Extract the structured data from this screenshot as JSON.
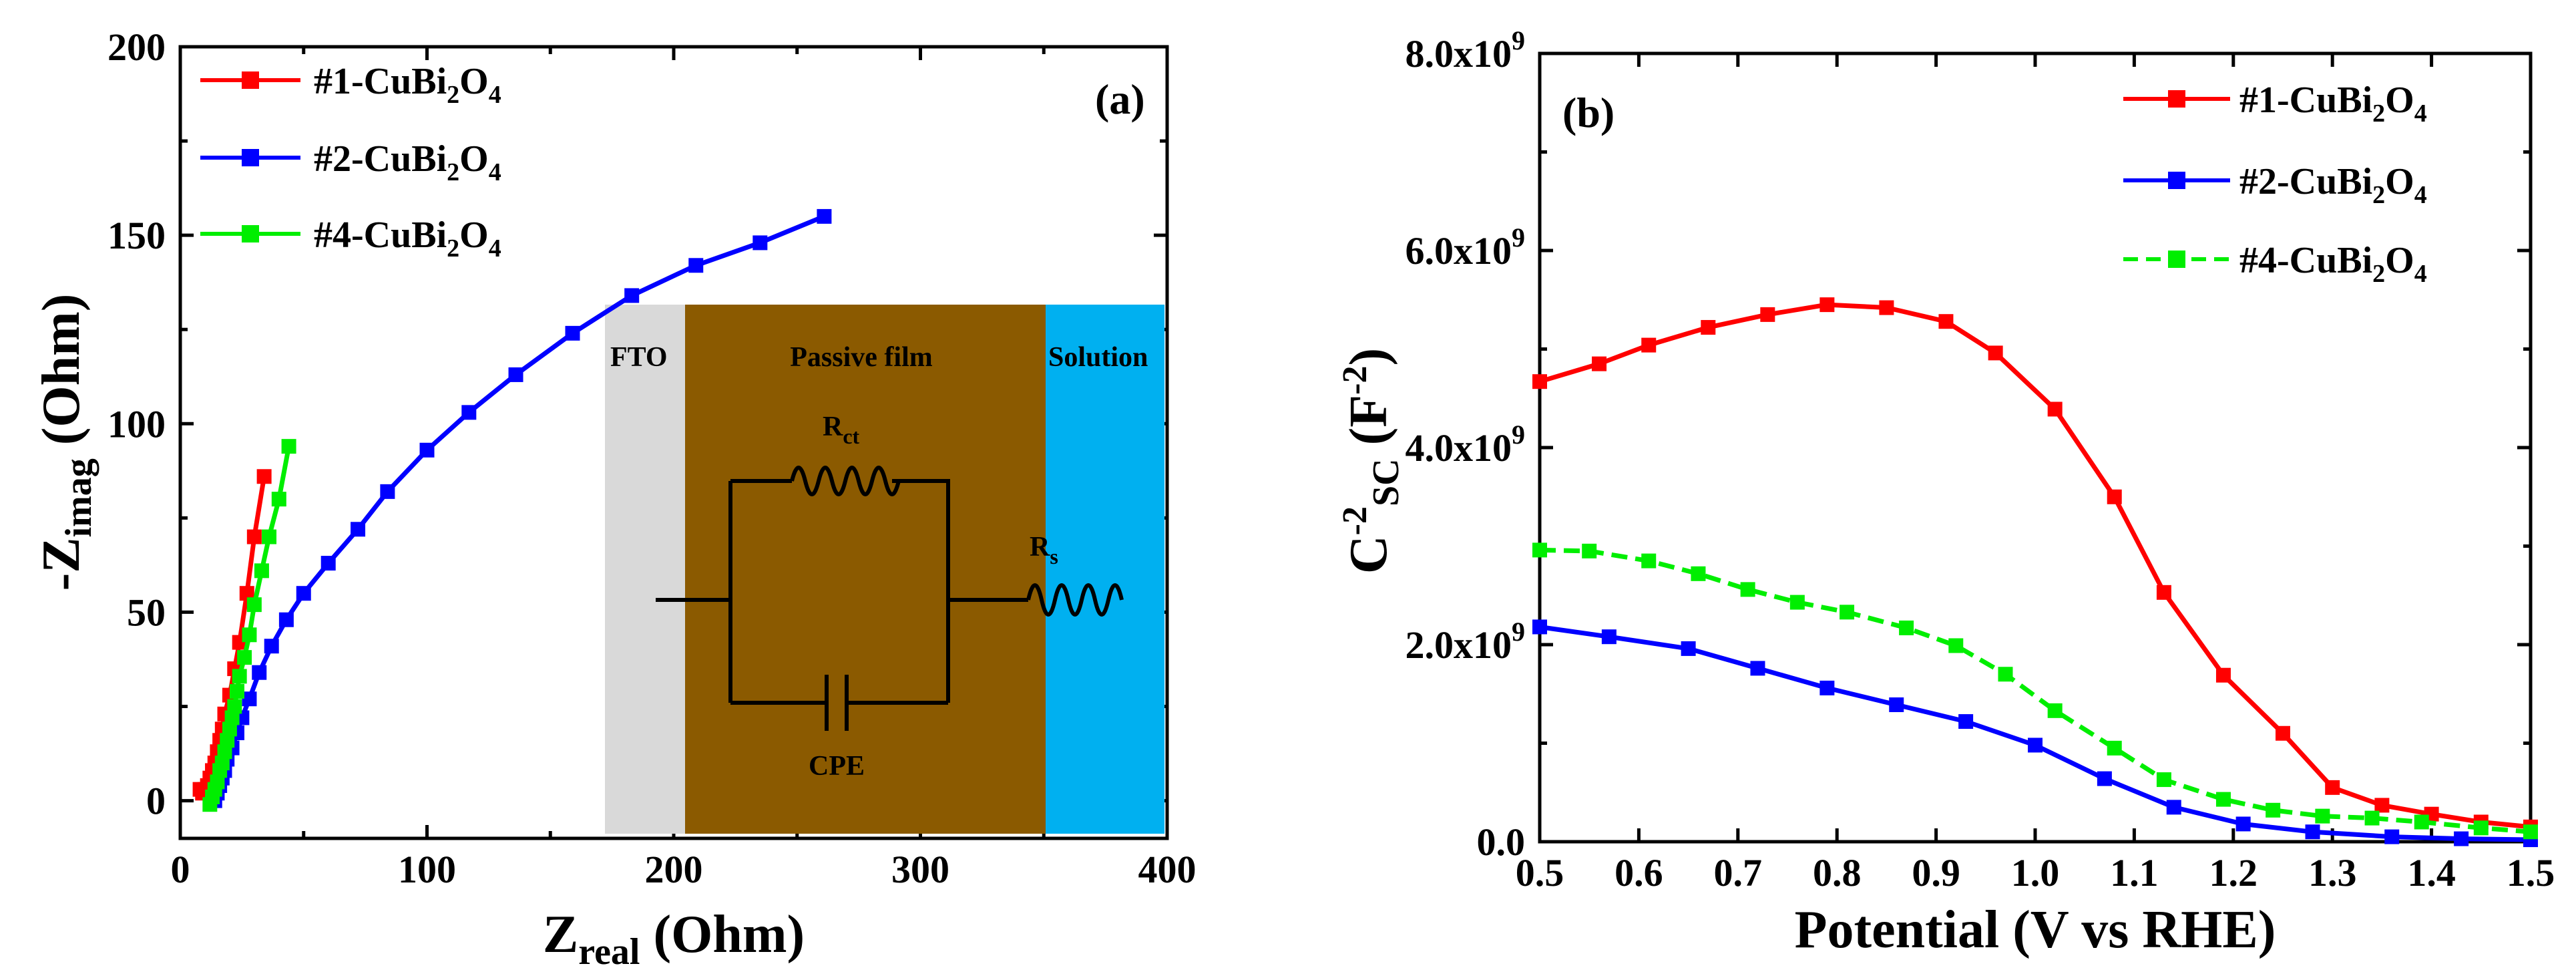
{
  "chart_data": [
    {
      "panel": "a",
      "type": "scatter",
      "panel_label": "(a)",
      "xlabel": {
        "main": "Z",
        "sub": "real",
        "unit": " (Ohm)"
      },
      "ylabel": {
        "main": "-Z",
        "sub": "imag",
        "unit": " (Ohm)"
      },
      "xlim": [
        0,
        400
      ],
      "ylim": [
        -10,
        200
      ],
      "xticks": [
        0,
        100,
        200,
        300,
        400
      ],
      "xtick_labels": [
        "0",
        "100",
        "200",
        "300",
        "400"
      ],
      "yticks": [
        0,
        50,
        100,
        150,
        200
      ],
      "ytick_labels": [
        "0",
        "50",
        "100",
        "150",
        "200"
      ],
      "series": [
        {
          "name": "#1-CuBi2O4",
          "label_base": "#1-CuBi",
          "label_sub1": "2",
          "label_mid": "O",
          "label_sub2": "4",
          "color": "#ff0000",
          "dashed": false,
          "x": [
            8,
            9,
            10,
            11,
            12,
            13,
            14,
            15,
            16,
            17,
            18,
            20,
            22,
            24,
            27,
            30,
            34
          ],
          "y": [
            3,
            2,
            3,
            4,
            6,
            8,
            10,
            13,
            16,
            19,
            23,
            28,
            35,
            42,
            55,
            70,
            86
          ]
        },
        {
          "name": "#2-CuBi2O4",
          "label_base": "#2-CuBi",
          "label_sub1": "2",
          "label_mid": "O",
          "label_sub2": "4",
          "color": "#0000ff",
          "dashed": false,
          "x": [
            14,
            15,
            16,
            17,
            18,
            19,
            21,
            23,
            25,
            28,
            32,
            37,
            43,
            50,
            60,
            72,
            84,
            100,
            117,
            136,
            159,
            183,
            209,
            235,
            261
          ],
          "y": [
            0,
            2,
            4,
            6,
            8,
            11,
            14,
            18,
            22,
            27,
            34,
            41,
            48,
            55,
            63,
            72,
            82,
            93,
            103,
            113,
            124,
            134,
            142,
            148,
            155
          ]
        },
        {
          "name": "#4-CuBi2O4",
          "label_base": "#4-CuBi",
          "label_sub1": "2",
          "label_mid": "O",
          "label_sub2": "4",
          "color": "#00ee00",
          "dashed": false,
          "x": [
            12,
            13,
            14,
            15,
            16,
            17,
            18,
            19,
            20,
            21,
            22,
            23,
            24,
            26,
            28,
            30,
            33,
            36,
            40,
            44
          ],
          "y": [
            -1,
            1,
            3,
            5,
            8,
            10,
            13,
            16,
            19,
            22,
            25,
            29,
            33,
            38,
            44,
            52,
            61,
            70,
            80,
            94
          ]
        }
      ],
      "inset": {
        "regions": [
          {
            "label": "FTO",
            "color": "#d9d9d9"
          },
          {
            "label": "Passive film",
            "color": "#8b5a00"
          },
          {
            "label": "Solution",
            "color": "#00b0f0"
          }
        ],
        "rct_label": "R",
        "rct_sub": "ct",
        "rs_label": "R",
        "rs_sub": "s",
        "cpe_label": "CPE"
      }
    },
    {
      "panel": "b",
      "type": "line",
      "panel_label": "(b)",
      "xlabel": "Potential (V vs RHE)",
      "ylabel": {
        "base": "C",
        "sup": "-2",
        "sub": "SC",
        "unit_open": " (F",
        "unit_sup": "-2",
        "unit_close": ")"
      },
      "xlim": [
        0.5,
        1.5
      ],
      "ylim": [
        0,
        8000000000.0
      ],
      "xticks": [
        0.5,
        0.6,
        0.7,
        0.8,
        0.9,
        1.0,
        1.1,
        1.2,
        1.3,
        1.4,
        1.5
      ],
      "xtick_labels": [
        "0.5",
        "0.6",
        "0.7",
        "0.8",
        "0.9",
        "1.0",
        "1.1",
        "1.2",
        "1.3",
        "1.4",
        "1.5"
      ],
      "yticks": [
        0,
        2000000000.0,
        4000000000.0,
        6000000000.0,
        8000000000.0
      ],
      "ytick_labels": [
        {
          "base": "0.0",
          "sup": ""
        },
        {
          "base": "2.0x10",
          "sup": "9"
        },
        {
          "base": "4.0x10",
          "sup": "9"
        },
        {
          "base": "6.0x10",
          "sup": "9"
        },
        {
          "base": "8.0x10",
          "sup": "9"
        }
      ],
      "series": [
        {
          "name": "#1-CuBi2O4",
          "label_base": "#1-CuBi",
          "label_sub1": "2",
          "label_mid": "O",
          "label_sub2": "4",
          "color": "#ff0000",
          "dashed": false,
          "x": [
            0.5,
            0.56,
            0.61,
            0.67,
            0.73,
            0.79,
            0.85,
            0.91,
            0.96,
            1.02,
            1.08,
            1.13,
            1.19,
            1.25,
            1.3,
            1.35,
            1.4,
            1.45,
            1.5
          ],
          "y": [
            4670000000.0,
            4850000000.0,
            5040000000.0,
            5220000000.0,
            5350000000.0,
            5450000000.0,
            5420000000.0,
            5280000000.0,
            4960000000.0,
            4390000000.0,
            3500000000.0,
            2530000000.0,
            1690000000.0,
            1100000000.0,
            550000000.0,
            370000000.0,
            280000000.0,
            200000000.0,
            150000000.0
          ]
        },
        {
          "name": "#2-CuBi2O4",
          "label_base": "#2-CuBi",
          "label_sub1": "2",
          "label_mid": "O",
          "label_sub2": "4",
          "color": "#0000ff",
          "dashed": false,
          "x": [
            0.5,
            0.57,
            0.65,
            0.72,
            0.79,
            0.86,
            0.93,
            1.0,
            1.07,
            1.14,
            1.21,
            1.28,
            1.36,
            1.43,
            1.5
          ],
          "y": [
            2180000000.0,
            2080000000.0,
            1960000000.0,
            1760000000.0,
            1560000000.0,
            1390000000.0,
            1220000000.0,
            980000000.0,
            640000000.0,
            350000000.0,
            180000000.0,
            100000000.0,
            50000000.0,
            30000000.0,
            20000000.0
          ]
        },
        {
          "name": "#4-CuBi2O4",
          "label_base": "#4-CuBi",
          "label_sub1": "2",
          "label_mid": "O",
          "label_sub2": "4",
          "color": "#00ee00",
          "dashed": true,
          "x": [
            0.5,
            0.55,
            0.61,
            0.66,
            0.71,
            0.76,
            0.81,
            0.87,
            0.92,
            0.97,
            1.02,
            1.08,
            1.13,
            1.19,
            1.24,
            1.29,
            1.34,
            1.39,
            1.45,
            1.5
          ],
          "y": [
            2960000000.0,
            2950000000.0,
            2850000000.0,
            2720000000.0,
            2560000000.0,
            2430000000.0,
            2330000000.0,
            2170000000.0,
            1990000000.0,
            1700000000.0,
            1330000000.0,
            950000000.0,
            630000000.0,
            430000000.0,
            320000000.0,
            260000000.0,
            240000000.0,
            200000000.0,
            140000000.0,
            100000000.0
          ]
        }
      ]
    }
  ]
}
